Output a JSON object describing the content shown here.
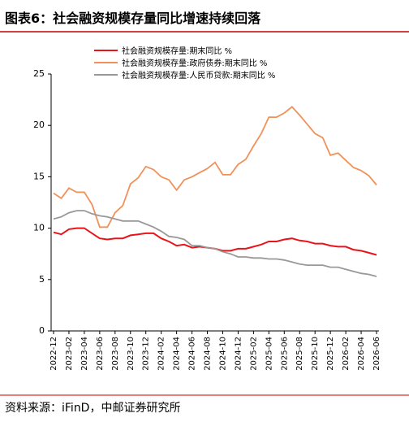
{
  "chart_data": {
    "type": "line",
    "title": "图表6：社会融资规模存量同比增速持续回落",
    "source": "资料来源：iFinD，中邮证券研究所",
    "categories": [
      "2022-12",
      null,
      "2023-02",
      null,
      "2023-04",
      null,
      "2023-06",
      null,
      "2023-08",
      null,
      "2023-10",
      null,
      "2023-12",
      null,
      "2024-02",
      null,
      "2024-04",
      null,
      "2024-06",
      null,
      "2024-08",
      null,
      "2024-10",
      null,
      "2024-12",
      null,
      "2025-02",
      null,
      "2025-04",
      null,
      "2025-06",
      null,
      "2025-08",
      null,
      "2025-10",
      null,
      "2025-12",
      null,
      "2026-02",
      null,
      "2026-04",
      null,
      "2026-06"
    ],
    "series": [
      {
        "name": "社会融资规模存量:期末同比  %",
        "color": "#e8141a",
        "values": [
          9.6,
          9.4,
          9.9,
          10.0,
          10.0,
          9.5,
          9.0,
          8.9,
          9.0,
          9.0,
          9.3,
          9.4,
          9.5,
          9.5,
          9.0,
          8.7,
          8.3,
          8.4,
          8.1,
          8.2,
          8.1,
          8.0,
          7.8,
          7.8,
          8.0,
          8.0,
          8.2,
          8.4,
          8.7,
          8.7,
          8.9,
          9.0,
          8.8,
          8.7,
          8.5,
          8.5,
          8.3,
          8.2,
          8.2,
          7.9,
          7.8,
          7.6,
          7.4
        ]
      },
      {
        "name": "社会融资规模存量:政府债券:期末同比  %",
        "color": "#f0915a",
        "values": [
          13.4,
          12.9,
          13.9,
          13.5,
          13.5,
          12.3,
          10.1,
          10.1,
          11.5,
          12.2,
          14.3,
          14.9,
          16.0,
          15.7,
          15.0,
          14.7,
          13.7,
          14.7,
          15.0,
          15.4,
          15.8,
          16.4,
          15.2,
          15.2,
          16.2,
          16.7,
          18.0,
          19.2,
          20.8,
          20.8,
          21.2,
          21.8,
          21.0,
          20.1,
          19.2,
          18.8,
          17.1,
          17.3,
          16.6,
          15.9,
          15.6,
          15.1,
          14.2
        ]
      },
      {
        "name": "社会融资规模存量:人民币贷款:期末同比  %",
        "color": "#999999",
        "values": [
          10.9,
          11.1,
          11.5,
          11.7,
          11.7,
          11.4,
          11.2,
          11.1,
          10.9,
          10.7,
          10.7,
          10.7,
          10.4,
          10.1,
          9.7,
          9.2,
          9.1,
          8.9,
          8.3,
          8.3,
          8.1,
          8.0,
          7.7,
          7.5,
          7.2,
          7.2,
          7.1,
          7.1,
          7.0,
          7.0,
          6.9,
          6.7,
          6.5,
          6.4,
          6.4,
          6.4,
          6.2,
          6.2,
          6.0,
          5.8,
          5.6,
          5.5,
          5.3
        ]
      }
    ],
    "ylim": [
      0,
      25
    ],
    "yticks": [
      0,
      5,
      10,
      15,
      20,
      25
    ]
  }
}
